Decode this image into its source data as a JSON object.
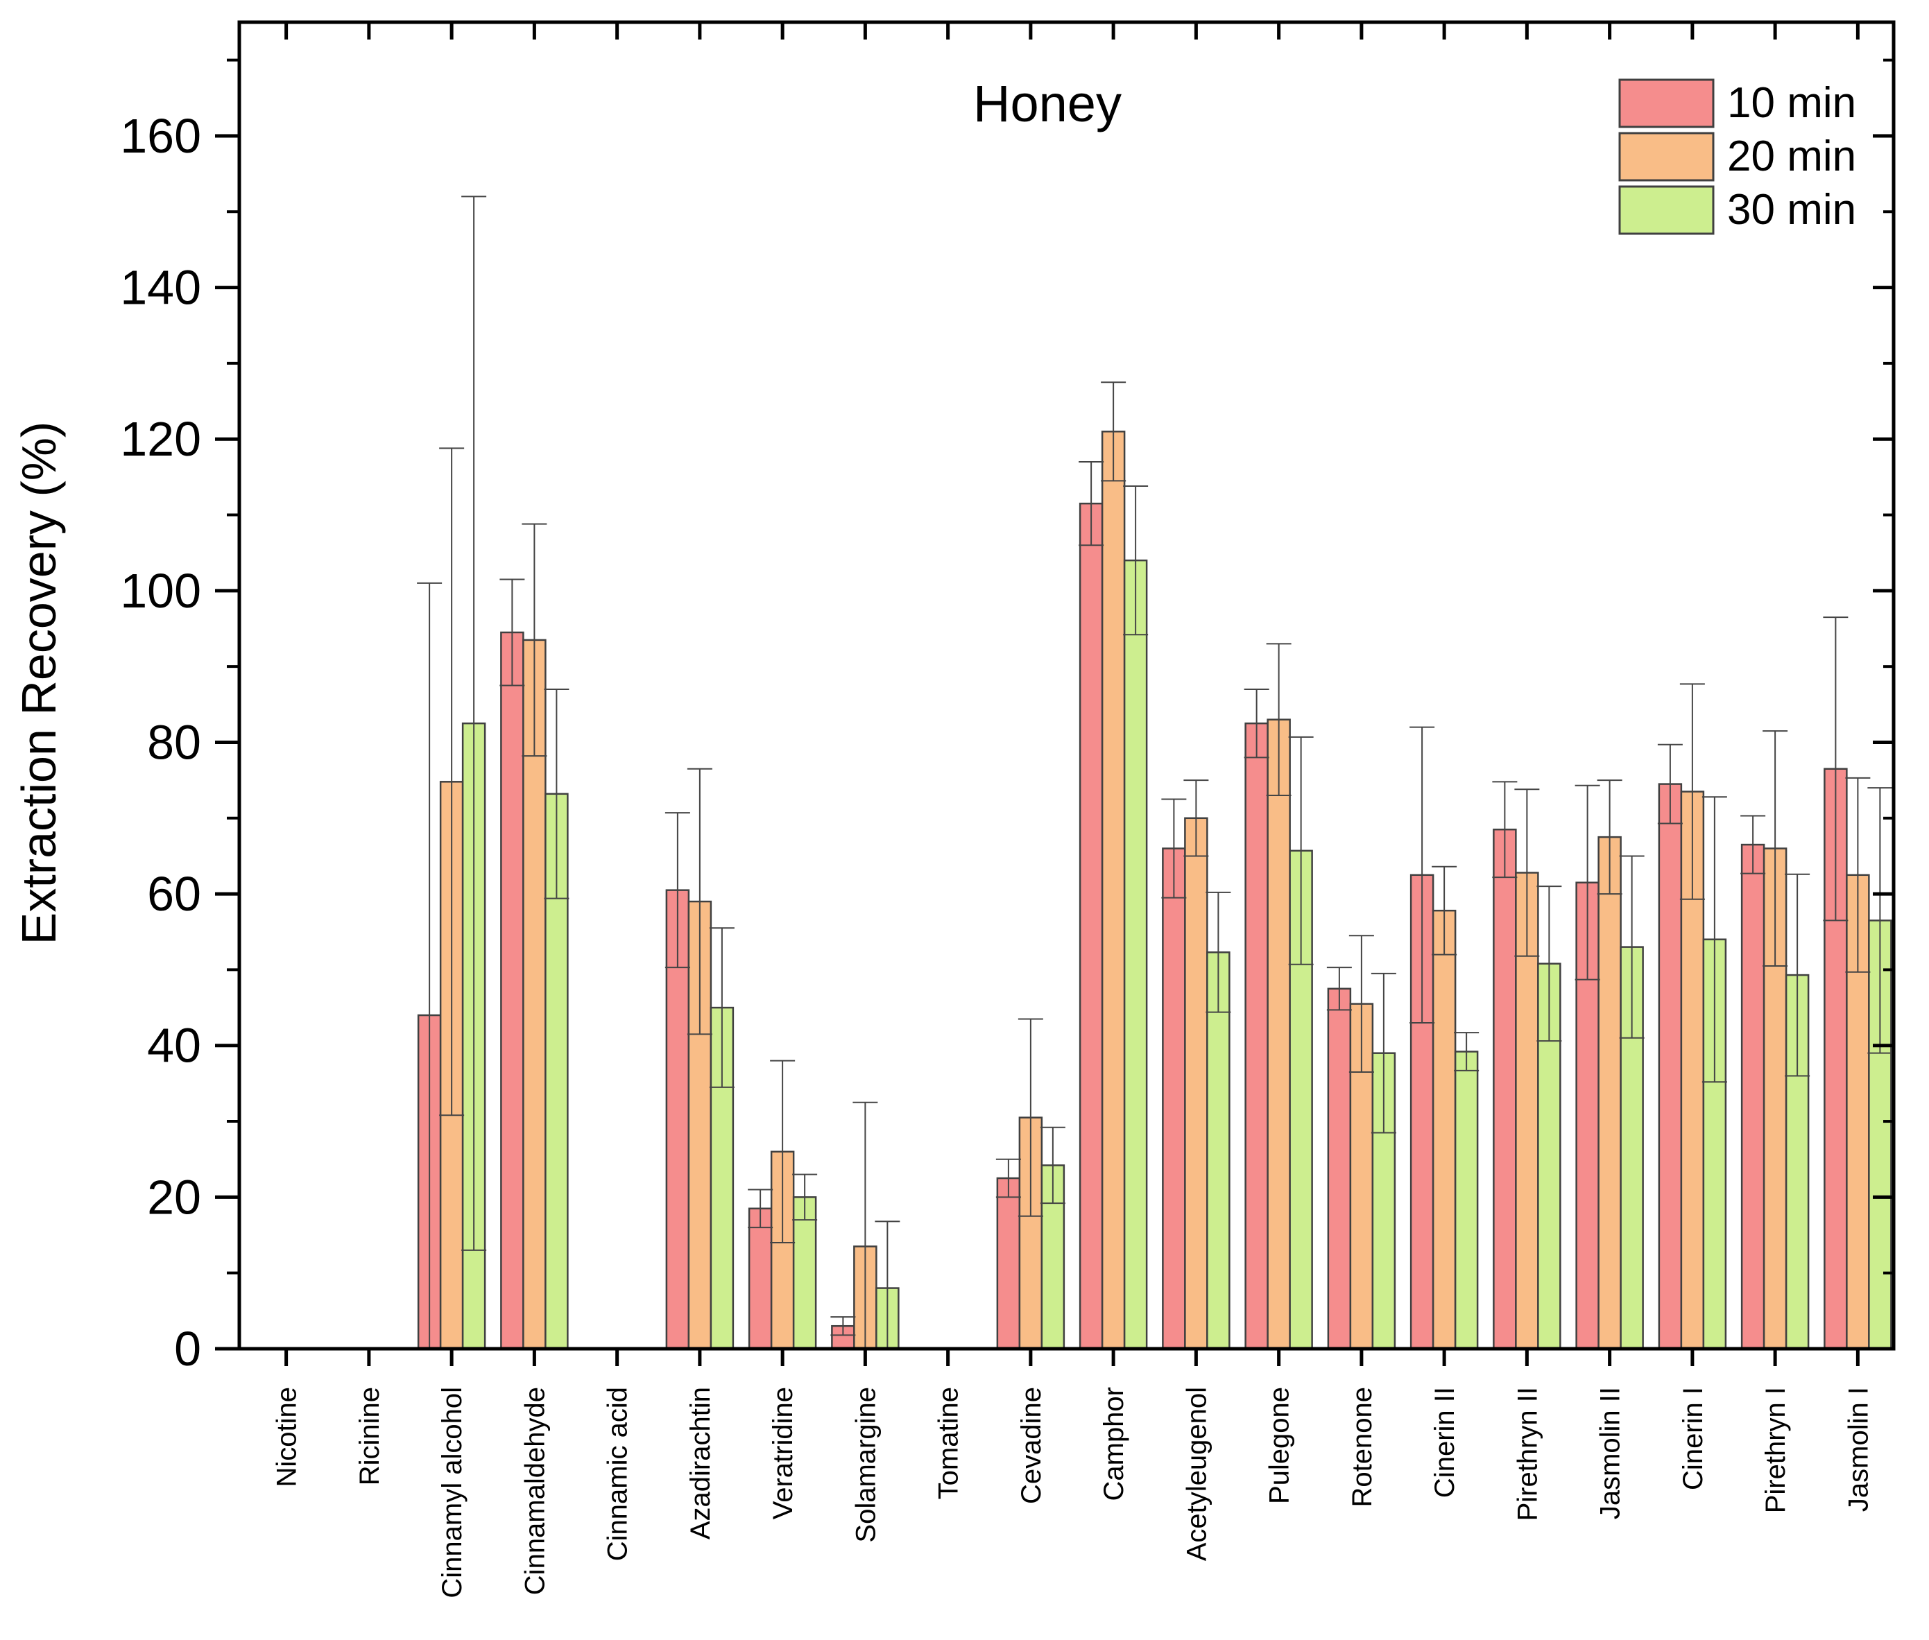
{
  "chart_data": {
    "type": "bar",
    "title": "Honey",
    "xlabel": "",
    "ylabel": "Extraction Recovery (%)",
    "ylim": [
      0,
      175
    ],
    "yticks": [
      0,
      20,
      40,
      60,
      80,
      100,
      120,
      140,
      160
    ],
    "grid": false,
    "legend_position": "top-right",
    "categories": [
      "Nicotine",
      "Ricinine",
      "Cinnamyl alcohol",
      "Cinnamaldehyde",
      "Cinnamic acid",
      "Azadirachtin",
      "Veratridine",
      "Solamargine",
      "Tomatine",
      "Cevadine",
      "Camphor",
      "Acetyleugenol",
      "Pulegone",
      "Rotenone",
      "Cinerin II",
      "Pirethryn II",
      "Jasmolin II",
      "Cinerin I",
      "Pirethryn I",
      "Jasmolin I"
    ],
    "series": [
      {
        "name": "10 min",
        "color": "#f58d8d",
        "values": [
          0,
          0,
          44,
          94.5,
          0,
          60.5,
          18.5,
          3,
          0,
          22.5,
          111.5,
          66,
          82.5,
          47.5,
          62.5,
          68.5,
          61.5,
          74.5,
          66.5,
          76.5
        ],
        "errors": [
          0,
          0,
          57,
          7,
          0,
          10.2,
          2.5,
          1.2,
          0,
          2.5,
          5.5,
          6.5,
          4.5,
          2.8,
          19.5,
          6.3,
          12.8,
          5.2,
          3.8,
          20
        ]
      },
      {
        "name": "20 min",
        "color": "#f9bd87",
        "values": [
          0,
          0,
          74.8,
          93.5,
          0,
          59,
          26,
          13.5,
          0,
          30.5,
          121,
          70,
          83,
          45.5,
          57.8,
          62.8,
          67.5,
          73.5,
          66,
          62.5
        ],
        "errors": [
          0,
          0,
          44,
          15.3,
          0,
          17.5,
          12,
          19,
          0,
          13,
          6.5,
          5,
          10,
          9,
          5.8,
          11,
          7.5,
          14.2,
          15.5,
          12.8
        ]
      },
      {
        "name": "30 min",
        "color": "#cdee8f",
        "values": [
          0,
          0,
          82.5,
          73.2,
          0,
          45,
          20,
          8,
          0,
          24.2,
          104,
          52.3,
          65.7,
          39,
          39.2,
          50.8,
          53,
          54,
          49.3,
          56.5
        ],
        "errors": [
          0,
          0,
          69.5,
          13.8,
          0,
          10.5,
          3,
          8.8,
          0,
          5,
          9.8,
          7.9,
          15,
          10.5,
          2.5,
          10.2,
          12,
          18.8,
          13.3,
          17.5
        ]
      }
    ]
  }
}
